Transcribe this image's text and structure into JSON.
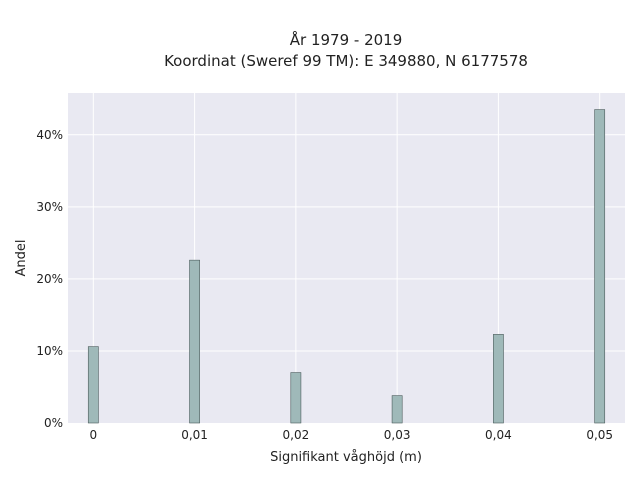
{
  "chart_data": {
    "type": "bar",
    "title": "År 1979 - 2019",
    "subtitle": "Koordinat (Sweref 99 TM): E 349880, N 6177578",
    "xlabel": "Signifikant våghöjd (m)",
    "ylabel": "Andel",
    "x": [
      0,
      0.01,
      0.02,
      0.03,
      0.04,
      0.05
    ],
    "x_tick_labels": [
      "0",
      "0,01",
      "0,02",
      "0,03",
      "0,04",
      "0,05"
    ],
    "y_tick_values": [
      0,
      10,
      20,
      30,
      40
    ],
    "y_tick_labels": [
      "0%",
      "10%",
      "20%",
      "30%",
      "40%"
    ],
    "values": [
      10.6,
      22.6,
      7.0,
      3.8,
      12.3,
      43.5
    ],
    "xlim": [
      -0.0025,
      0.0525
    ],
    "ylim": [
      0,
      45.8
    ],
    "grid": true,
    "colors": {
      "background": "#e9e9f2",
      "bar_fill": "#9fb9b9",
      "bar_stroke": "#4a5b5b",
      "grid": "#ffffff"
    }
  }
}
